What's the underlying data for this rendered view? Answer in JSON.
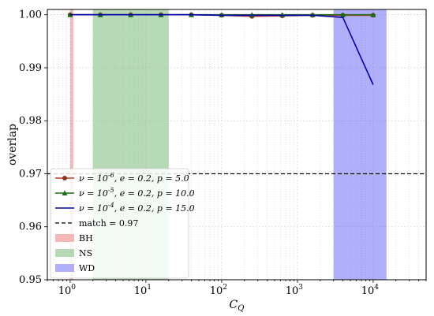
{
  "chart_data": {
    "type": "line",
    "title": "",
    "xlabel": "C_Q",
    "ylabel": "overlap",
    "xscale": "log",
    "xlim": [
      0.5,
      50000
    ],
    "ylim": [
      0.95,
      1.001
    ],
    "x_ticks": [
      {
        "value": 1,
        "base": "10",
        "exp": "0"
      },
      {
        "value": 10,
        "base": "10",
        "exp": "1"
      },
      {
        "value": 100,
        "base": "10",
        "exp": "2"
      },
      {
        "value": 1000,
        "base": "10",
        "exp": "3"
      },
      {
        "value": 10000,
        "base": "10",
        "exp": "4"
      }
    ],
    "y_ticks": [
      {
        "value": 0.95,
        "label": "0.95"
      },
      {
        "value": 0.96,
        "label": "0.96"
      },
      {
        "value": 0.97,
        "label": "0.97"
      },
      {
        "value": 0.98,
        "label": "0.98"
      },
      {
        "value": 0.99,
        "label": "0.99"
      },
      {
        "value": 1.0,
        "label": "1.00"
      }
    ],
    "grid": true,
    "legend_position": "bottom-left",
    "regions": [
      {
        "name": "BH",
        "x_range": [
          1,
          1.1
        ],
        "color": "#f0a0a0",
        "opacity": 0.75
      },
      {
        "name": "NS",
        "x_range": [
          2,
          20
        ],
        "color": "#8fc48f",
        "opacity": 0.65
      },
      {
        "name": "WD",
        "x_range": [
          3000,
          15000
        ],
        "color": "#7070f5",
        "opacity": 0.55
      }
    ],
    "reference_line": {
      "name": "match = 0.97",
      "y": 0.97,
      "color": "#000000",
      "style": "dashed"
    },
    "series": [
      {
        "name": "ν = 10⁻⁶, e = 0.2, p = 5.0",
        "color": "#c0392b",
        "marker": "circle",
        "marker_color": "#8b3a1a",
        "x": [
          1,
          2.5,
          6.3,
          15.8,
          39.8,
          100,
          251,
          631,
          1585,
          3981,
          10000
        ],
        "y": [
          1.0,
          1.0,
          1.0,
          1.0,
          1.0,
          0.9999,
          0.9997,
          0.9998,
          0.9999,
          0.9999,
          0.9999
        ]
      },
      {
        "name": "ν = 10⁻⁵, e = 0.2, p = 10.0",
        "color": "#1e6b1e",
        "marker": "triangle",
        "marker_color": "#1e6b1e",
        "x": [
          1,
          2.5,
          6.3,
          15.8,
          39.8,
          100,
          251,
          631,
          1585,
          3981,
          10000
        ],
        "y": [
          1.0,
          1.0,
          1.0,
          1.0,
          1.0,
          1.0,
          1.0,
          1.0,
          1.0,
          1.0,
          1.0
        ]
      },
      {
        "name": "ν = 10⁻⁴, e = 0.2, p = 15.0",
        "color": "#0000aa",
        "marker": "none",
        "marker_color": "#0000aa",
        "x": [
          1,
          2.5,
          6.3,
          15.8,
          39.8,
          100,
          251,
          631,
          1585,
          3981,
          10000
        ],
        "y": [
          1.0,
          1.0,
          1.0,
          1.0,
          1.0,
          0.9999,
          0.9999,
          0.9999,
          0.9999,
          0.9995,
          0.9868
        ]
      }
    ],
    "legend": [
      {
        "kind": "line",
        "series": 0,
        "nu_exp": "-6",
        "e": "0.2",
        "p": "5.0"
      },
      {
        "kind": "line",
        "series": 1,
        "nu_exp": "-5",
        "e": "0.2",
        "p": "10.0"
      },
      {
        "kind": "line",
        "series": 2,
        "nu_exp": "-4",
        "e": "0.2",
        "p": "15.0"
      },
      {
        "kind": "dash",
        "label": "match = 0.97"
      },
      {
        "kind": "patch",
        "region": 0,
        "label": "BH"
      },
      {
        "kind": "patch",
        "region": 1,
        "label": "NS"
      },
      {
        "kind": "patch",
        "region": 2,
        "label": "WD"
      }
    ]
  }
}
